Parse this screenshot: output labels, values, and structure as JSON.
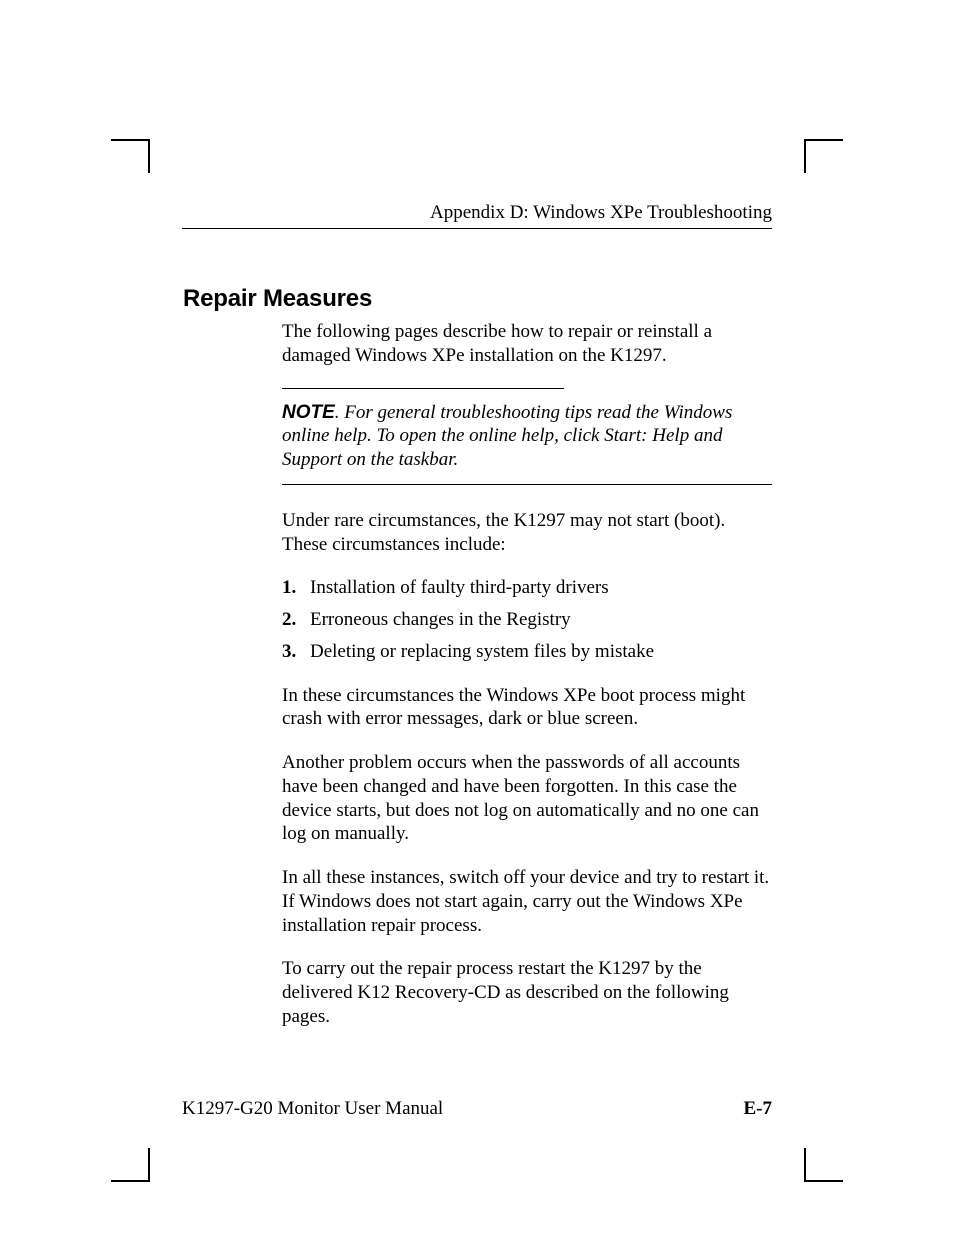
{
  "header": {
    "title": "Appendix D: Windows XPe Troubleshooting"
  },
  "section": {
    "heading": "Repair Measures"
  },
  "intro": "The following pages describe how to repair or reinstall a damaged Windows XPe installation on the K1297.",
  "note": {
    "label": "NOTE",
    "text": ". For general troubleshooting tips read the Windows online help. To open the online help, click Start: Help and Support on the taskbar."
  },
  "para2": "Under rare circumstances, the K1297 may not start (boot). These circumstances include:",
  "list": [
    {
      "num": "1.",
      "text": "Installation of faulty third-party drivers"
    },
    {
      "num": "2.",
      "text": "Erroneous changes in the Registry"
    },
    {
      "num": "3.",
      "text": "Deleting or replacing system files by mistake"
    }
  ],
  "para3": "In these circumstances the Windows XPe boot process might crash with error messages, dark or blue screen.",
  "para4": "Another problem occurs when the passwords of all accounts have been changed and have been forgotten. In this case the device starts, but does not log on automatically and no one can log on manually.",
  "para5": "In all these instances, switch off your device and try to restart it. If Windows does not start again, carry out the Windows XPe installation repair process.",
  "para6": "To carry out the repair process restart the K1297 by the delivered K12 Recovery-CD as described on the following pages.",
  "footer": {
    "left": "K1297-G20 Monitor User Manual",
    "right": "E-7"
  }
}
